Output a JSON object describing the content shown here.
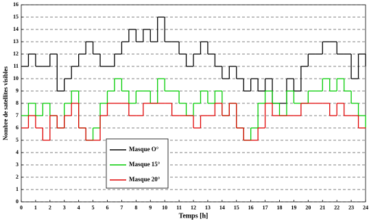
{
  "chart_data": {
    "type": "line",
    "step": "post",
    "x_label": "Temps [h]",
    "y_label": "Nombre de satellites visibles",
    "x": [
      0,
      0.5,
      1,
      1.5,
      2,
      2.5,
      3,
      3.5,
      4,
      4.5,
      5,
      5.5,
      6,
      6.5,
      7,
      7.5,
      8,
      8.5,
      9,
      9.5,
      10,
      10.5,
      11,
      11.5,
      12,
      12.5,
      13,
      13.5,
      14,
      14.5,
      15,
      15.5,
      16,
      16.5,
      17,
      17.5,
      18,
      18.5,
      19,
      19.5,
      20,
      20.5,
      21,
      21.5,
      22,
      22.5,
      23,
      23.5,
      24
    ],
    "series": [
      {
        "name": "Masque O°",
        "color": "#000000",
        "values": [
          11,
          12,
          11,
          11,
          12,
          9,
          10,
          11,
          12,
          13,
          12,
          11,
          11,
          12,
          13,
          14,
          13,
          14,
          13,
          15,
          13,
          13,
          12,
          11,
          12,
          13,
          12,
          11,
          10,
          11,
          10,
          9,
          10,
          9,
          10,
          8,
          8,
          10,
          9,
          11,
          12,
          12,
          13,
          13,
          12,
          12,
          10,
          12,
          11
        ]
      },
      {
        "name": "Masque 15°",
        "color": "#00cc00",
        "values": [
          7,
          8,
          7,
          8,
          7,
          6,
          8,
          9,
          6,
          5,
          6,
          8,
          9,
          10,
          9,
          8,
          9,
          9,
          8,
          10,
          9,
          9,
          8,
          7,
          8,
          9,
          8,
          9,
          7,
          8,
          6,
          5,
          6,
          8,
          9,
          8,
          7,
          9,
          8,
          8,
          9,
          9,
          10,
          9,
          10,
          9,
          8,
          7,
          6
        ]
      },
      {
        "name": "Masque 20°",
        "color": "#e00000",
        "values": [
          6,
          7,
          6,
          5,
          7,
          6,
          7,
          8,
          6,
          5,
          5,
          7,
          8,
          8,
          8,
          7,
          7,
          8,
          8,
          8,
          8,
          7,
          7,
          7,
          6,
          7,
          7,
          8,
          7,
          8,
          6,
          5,
          5,
          6,
          8,
          7,
          7,
          7,
          7,
          8,
          8,
          8,
          8,
          7,
          8,
          7,
          7,
          6,
          6
        ]
      }
    ],
    "xlim": [
      0,
      24
    ],
    "xticks": [
      0,
      1,
      2,
      3,
      4,
      5,
      6,
      7,
      8,
      9,
      10,
      11,
      12,
      13,
      14,
      15,
      16,
      17,
      18,
      19,
      20,
      21,
      22,
      23,
      24
    ],
    "ylim": [
      0,
      16
    ],
    "yticks": [
      0,
      1,
      2,
      3,
      4,
      5,
      6,
      7,
      8,
      9,
      10,
      11,
      12,
      13,
      14,
      15,
      16
    ],
    "grid": true
  }
}
